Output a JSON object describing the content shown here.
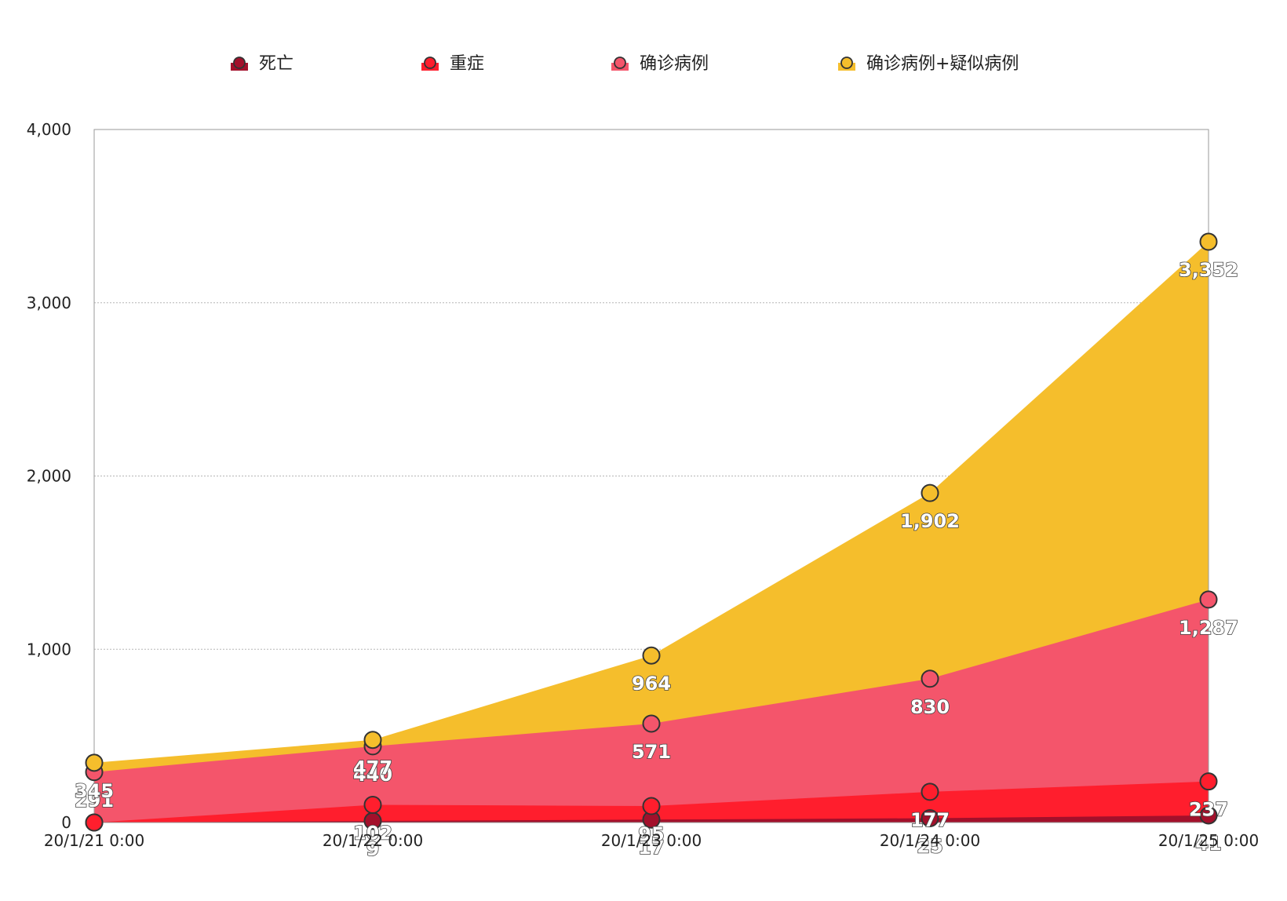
{
  "chart_data": {
    "type": "area",
    "title": "",
    "xlabel": "",
    "ylabel": "",
    "categories": [
      "20/1/21 0:00",
      "20/1/22 0:00",
      "20/1/23 0:00",
      "20/1/24 0:00",
      "20/1/25 0:00"
    ],
    "ylim": [
      0,
      4000
    ],
    "yticks": [
      "0",
      "1,000",
      "2,000",
      "3,000",
      "4,000"
    ],
    "grid": true,
    "legend_position": "top",
    "series": [
      {
        "name": "死亡",
        "color": "#A3102B",
        "values": [
          0,
          9,
          17,
          25,
          41
        ],
        "labels": [
          "",
          "9",
          "17",
          "25",
          "41"
        ]
      },
      {
        "name": "重症",
        "color": "#FF1E2D",
        "values": [
          0,
          102,
          95,
          177,
          237
        ],
        "labels": [
          "",
          "102",
          "95",
          "177",
          "237"
        ]
      },
      {
        "name": "确诊病例",
        "color": "#F4556B",
        "values": [
          291,
          440,
          571,
          830,
          1287
        ],
        "labels": [
          "291",
          "440",
          "571",
          "830",
          "1,287"
        ]
      },
      {
        "name": "确诊病例+疑似病例",
        "color": "#F5BE2C",
        "values": [
          345,
          477,
          964,
          1902,
          3352
        ],
        "labels": [
          "345",
          "477",
          "964",
          "1,902",
          "3,352"
        ]
      }
    ]
  }
}
